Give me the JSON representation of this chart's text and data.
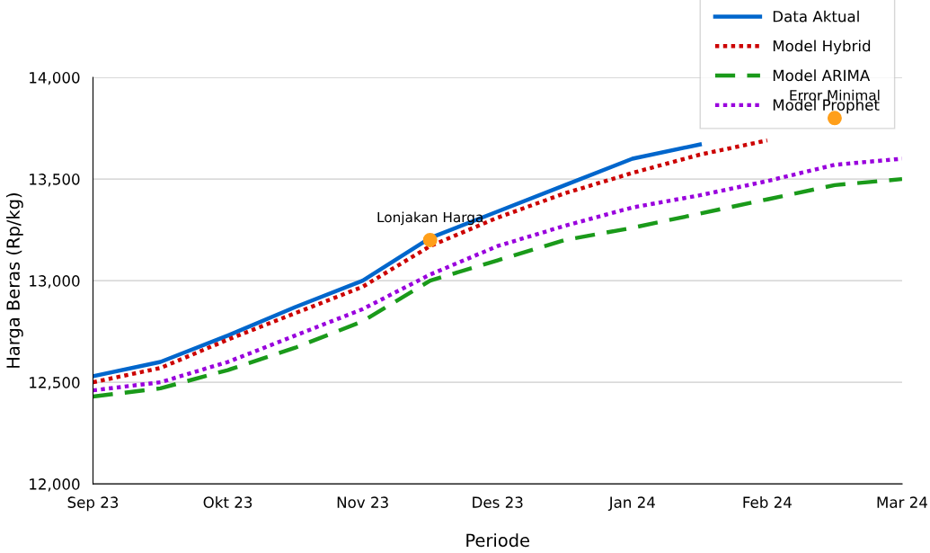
{
  "chart_data": {
    "type": "line",
    "xlabel": "Periode",
    "ylabel": "Harga Beras (Rp/kg)",
    "categories": [
      "Sep 23",
      null,
      "Okt 23",
      null,
      "Nov 23",
      null,
      "Des 23",
      null,
      "Jan 24",
      null,
      "Feb 24",
      null,
      "Mar 24"
    ],
    "ylim": [
      12000,
      14000
    ],
    "yticks": [
      {
        "value": 12000,
        "label": "12,000"
      },
      {
        "value": 12500,
        "label": "12,500"
      },
      {
        "value": 13000,
        "label": "13,000"
      },
      {
        "value": 13500,
        "label": "13,500"
      },
      {
        "value": 14000,
        "label": "14,000"
      }
    ],
    "grid": "y",
    "legend": "top right",
    "series": [
      {
        "name": "Data Aktual",
        "color": "#0066cc",
        "line_style": "solid",
        "values": [
          12530,
          12600,
          12730,
          12870,
          13000,
          13210,
          13340,
          13470,
          13600,
          13670,
          null,
          null,
          null
        ]
      },
      {
        "name": "Model Hybrid",
        "color": "#cc0000",
        "line_style": "dotted",
        "values": [
          12500,
          12570,
          12710,
          12840,
          12970,
          13170,
          13310,
          13430,
          13530,
          13620,
          13690,
          null,
          null
        ]
      },
      {
        "name": "Model ARIMA",
        "color": "#1a9a1a",
        "line_style": "dashed",
        "values": [
          12430,
          12470,
          12560,
          12670,
          12800,
          13000,
          13100,
          13200,
          13260,
          13330,
          13400,
          13470,
          13500
        ]
      },
      {
        "name": "Model Prophet",
        "color": "#9900dd",
        "line_style": "dotted",
        "values": [
          12460,
          12500,
          12600,
          12730,
          12860,
          13030,
          13170,
          13270,
          13360,
          13420,
          13490,
          13570,
          13600
        ]
      },
      {
        "type": "scatter",
        "color": "#ff9f1a",
        "values": [
          null,
          null,
          null,
          null,
          null,
          13200,
          null,
          null,
          null,
          null,
          null,
          13800,
          null
        ],
        "value_labels": [
          null,
          null,
          null,
          null,
          null,
          "Lonjakan Harga",
          null,
          null,
          null,
          null,
          null,
          "Error Minimal",
          null
        ]
      }
    ]
  }
}
